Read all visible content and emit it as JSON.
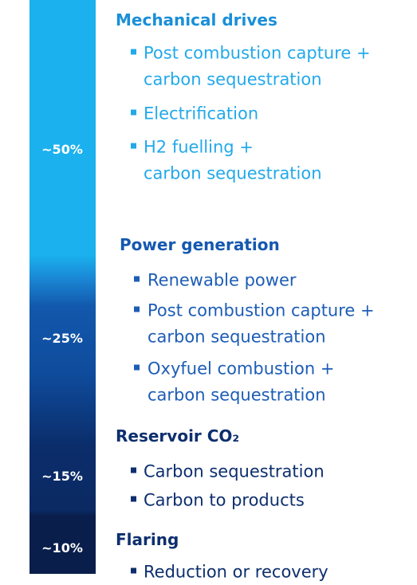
{
  "sections": [
    {
      "share": "~50%",
      "heading": "Mechanical drives",
      "items": [
        [
          "Post combustion capture +",
          "carbon sequestration"
        ],
        [
          "Electrification"
        ],
        [
          "H2 fuelling +",
          "carbon sequestration"
        ]
      ]
    },
    {
      "share": "~25%",
      "heading": "Power generation",
      "items": [
        [
          "Renewable power"
        ],
        [
          "Post combustion capture +",
          "carbon sequestration"
        ],
        [
          "Oxyfuel combustion +",
          "carbon sequestration"
        ]
      ]
    },
    {
      "share": "~15%",
      "heading": "Reservoir CO₂",
      "items": [
        [
          "Carbon sequestration"
        ],
        [
          "Carbon to products"
        ]
      ]
    },
    {
      "share": "~10%",
      "heading": "Flaring",
      "items": [
        [
          "Reduction or recovery"
        ]
      ]
    }
  ]
}
